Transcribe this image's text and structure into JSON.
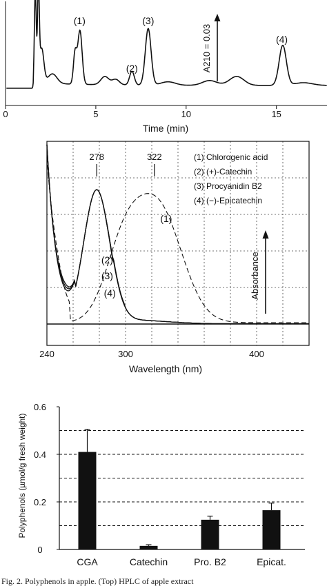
{
  "chart_data": [
    {
      "type": "line",
      "panel": "top",
      "xlabel": "Time (min)",
      "xlim": [
        0,
        17.8
      ],
      "x_ticks": [
        "0",
        "5",
        "10",
        "15"
      ],
      "peak_labels": [
        {
          "text": "(1)",
          "x": 4.1
        },
        {
          "text": "(2)",
          "x": 7.0
        },
        {
          "text": "(3)",
          "x": 7.9
        },
        {
          "text": "(4)",
          "x": 15.3
        }
      ],
      "scale_bar_label": "A210 = 0.03",
      "grid": false
    },
    {
      "type": "line",
      "panel": "middle",
      "xlabel": "Wavelength (nm)",
      "ylabel": "Absorbance",
      "xlim": [
        240,
        440
      ],
      "x_ticks": [
        "240",
        "300",
        "400"
      ],
      "grid": true,
      "peak_annotations": [
        {
          "text": "278",
          "x": 278
        },
        {
          "text": "322",
          "x": 322
        }
      ],
      "series_labels": [
        {
          "text": "(1)",
          "x": 331
        },
        {
          "text": "(2)",
          "x": 286
        },
        {
          "text": "(3)",
          "x": 286
        },
        {
          "text": "(4)",
          "x": 288
        }
      ],
      "legend": [
        "(1) Chlorogenic acid",
        "(2) (+)-Catechin",
        "(3) Procyanidin B2",
        "(4) (−)-Epicatechin"
      ],
      "legend_position": "top-right"
    },
    {
      "type": "bar",
      "panel": "bottom",
      "ylabel": "Polyphenols (µmol/g fresh weight)",
      "categories": [
        "CGA",
        "Catechin",
        "Pro. B2",
        "Epicat."
      ],
      "values": [
        0.41,
        0.015,
        0.125,
        0.165
      ],
      "errors": [
        0.095,
        0.005,
        0.015,
        0.03
      ],
      "ylim": [
        0,
        0.6
      ],
      "y_ticks": [
        "0",
        "0.2",
        "0.4",
        "0.6"
      ],
      "gridlines": [
        0.1,
        0.2,
        0.3,
        0.4,
        0.5
      ],
      "grid": true
    }
  ],
  "caption": "Fig. 2.  Polyphenols in apple. (Top) HPLC of apple extract"
}
